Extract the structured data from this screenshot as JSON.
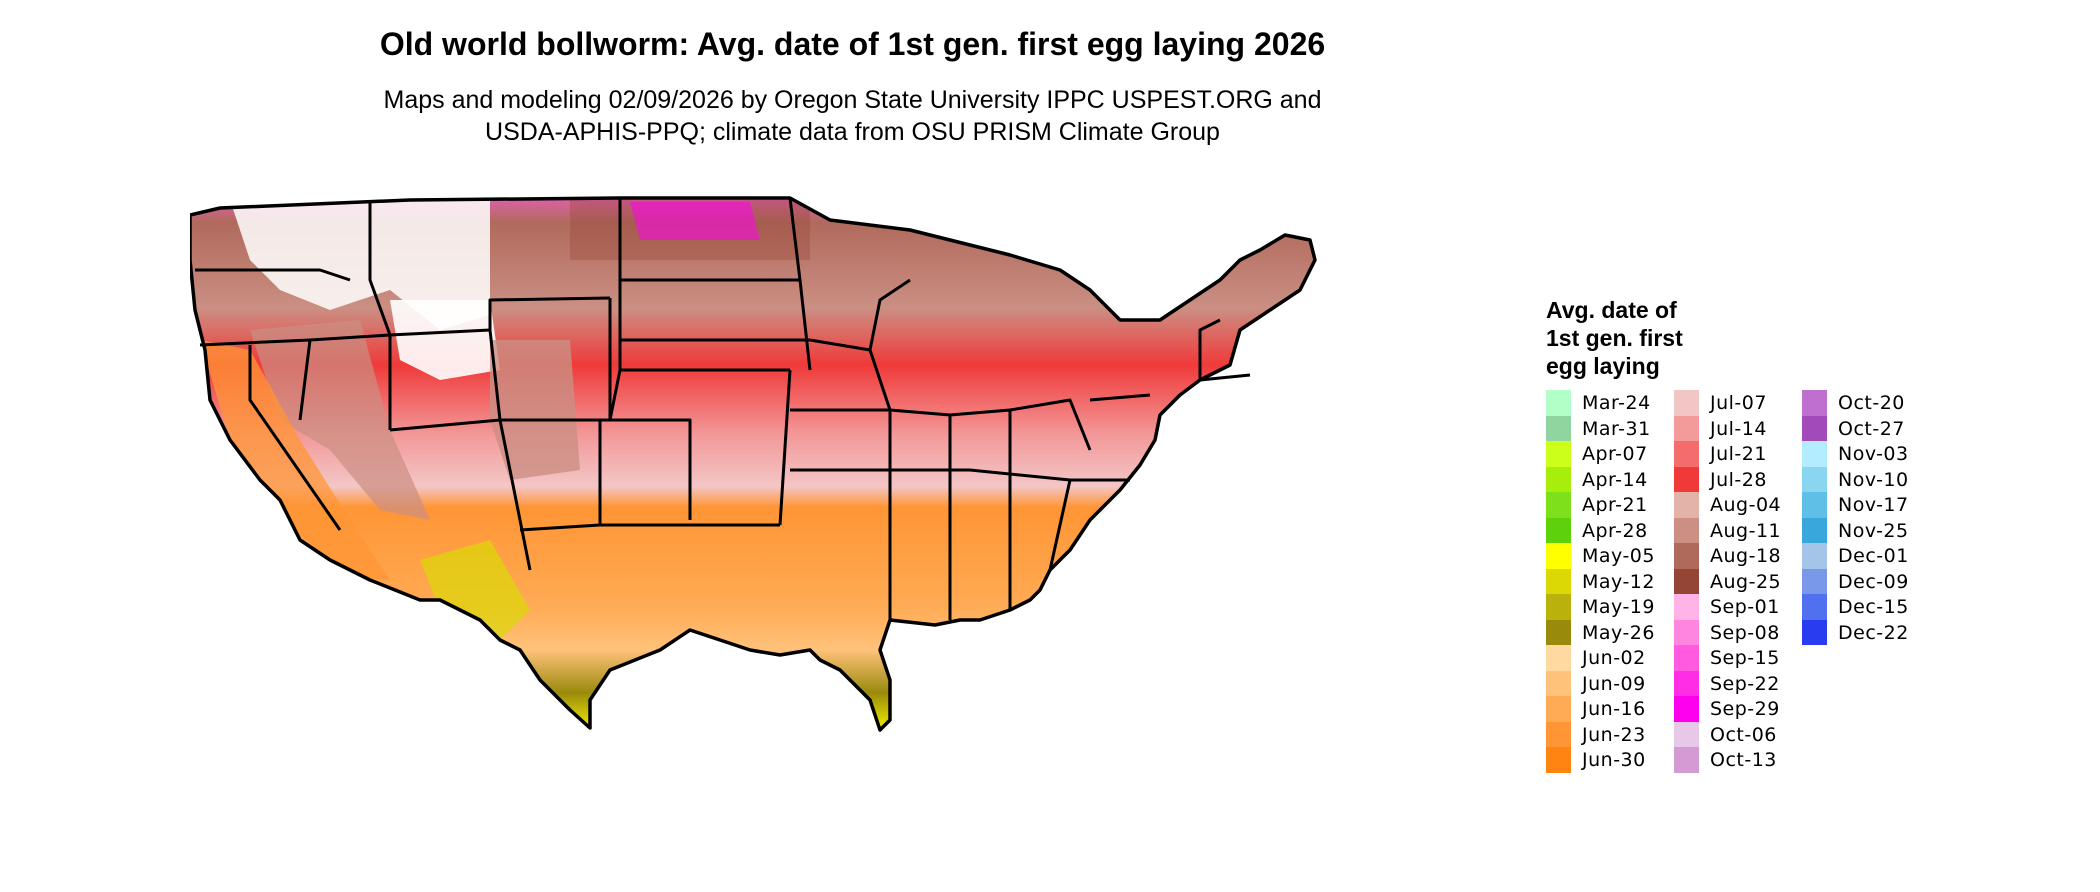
{
  "title": "Old world bollworm: Avg. date of 1st gen. first egg laying 2026",
  "subtitle_lines": [
    "Maps and modeling 02/09/2026 by Oregon State University IPPC USPEST.ORG and",
    "USDA-APHIS-PPQ; climate data from OSU PRISM Climate Group"
  ],
  "legend": {
    "title_lines": [
      "Avg. date of",
      "1st gen. first",
      "egg laying"
    ],
    "columns": [
      [
        {
          "label": "Mar-24",
          "color": "#b3ffc8"
        },
        {
          "label": "Mar-31",
          "color": "#90d4a0"
        },
        {
          "label": "Apr-07",
          "color": "#ccff1a"
        },
        {
          "label": "Apr-14",
          "color": "#a8ee0c"
        },
        {
          "label": "Apr-21",
          "color": "#7ee01a"
        },
        {
          "label": "Apr-28",
          "color": "#5cd10c"
        },
        {
          "label": "May-05",
          "color": "#ffff00"
        },
        {
          "label": "May-12",
          "color": "#dcd805"
        },
        {
          "label": "May-19",
          "color": "#bab20c"
        },
        {
          "label": "May-26",
          "color": "#9a8a0c"
        },
        {
          "label": "Jun-02",
          "color": "#ffd9a0"
        },
        {
          "label": "Jun-09",
          "color": "#ffc27a"
        },
        {
          "label": "Jun-16",
          "color": "#ffab55"
        },
        {
          "label": "Jun-23",
          "color": "#ff9535"
        },
        {
          "label": "Jun-30",
          "color": "#ff8412"
        }
      ],
      [
        {
          "label": "Jul-07",
          "color": "#f3c6c6"
        },
        {
          "label": "Jul-14",
          "color": "#f39a9a"
        },
        {
          "label": "Jul-21",
          "color": "#f36d6d"
        },
        {
          "label": "Jul-28",
          "color": "#f03a3a"
        },
        {
          "label": "Aug-04",
          "color": "#e3b2a8"
        },
        {
          "label": "Aug-11",
          "color": "#cb8f83"
        },
        {
          "label": "Aug-18",
          "color": "#b06a5c"
        },
        {
          "label": "Aug-25",
          "color": "#954536"
        },
        {
          "label": "Sep-01",
          "color": "#ffb3e6"
        },
        {
          "label": "Sep-08",
          "color": "#ff85e0"
        },
        {
          "label": "Sep-15",
          "color": "#ff5ae0"
        },
        {
          "label": "Sep-22",
          "color": "#ff2ee6"
        },
        {
          "label": "Sep-29",
          "color": "#ff00ee"
        },
        {
          "label": "Oct-06",
          "color": "#e8c8e8"
        },
        {
          "label": "Oct-13",
          "color": "#d49ad4"
        }
      ],
      [
        {
          "label": "Oct-20",
          "color": "#bf6fd0"
        },
        {
          "label": "Oct-27",
          "color": "#a24ab8"
        },
        {
          "label": "Nov-03",
          "color": "#b4ecff"
        },
        {
          "label": "Nov-10",
          "color": "#8ad6f0"
        },
        {
          "label": "Nov-17",
          "color": "#60bfe6"
        },
        {
          "label": "Nov-25",
          "color": "#38a8dc"
        },
        {
          "label": "Dec-01",
          "color": "#a4c4e8"
        },
        {
          "label": "Dec-09",
          "color": "#7a98e8"
        },
        {
          "label": "Dec-15",
          "color": "#5070ef"
        },
        {
          "label": "Dec-22",
          "color": "#2a3cf0"
        }
      ]
    ]
  }
}
